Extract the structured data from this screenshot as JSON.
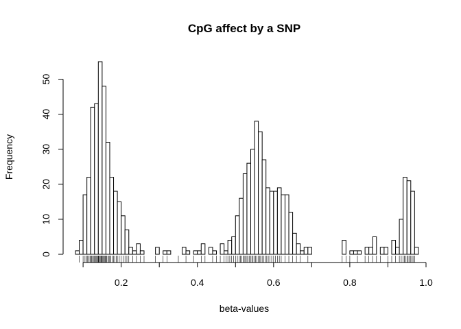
{
  "chart_data": {
    "type": "bar",
    "title": "CpG affect by a SNP",
    "xlabel": "beta-values",
    "ylabel": "Frequency",
    "xlim": [
      0.08,
      1.0
    ],
    "ylim": [
      0,
      55
    ],
    "x_ticks": [
      0.2,
      0.4,
      0.6,
      0.8,
      1.0
    ],
    "x_tick_labels": [
      "0.2",
      "0.4",
      "0.6",
      "0.8",
      "1.0"
    ],
    "y_ticks": [
      0,
      10,
      20,
      30,
      40,
      50
    ],
    "y_tick_labels": [
      "0",
      "10",
      "20",
      "30",
      "40",
      "50"
    ],
    "bin_width": 0.01,
    "bin_start": 0.08,
    "bin_counts": [
      1,
      4,
      17,
      22,
      42,
      43,
      55,
      48,
      32,
      22,
      18,
      15,
      11,
      7,
      2,
      1,
      3,
      1,
      0,
      0,
      0,
      2,
      0,
      1,
      1,
      0,
      0,
      0,
      2,
      1,
      0,
      1,
      1,
      3,
      0,
      2,
      1,
      0,
      3,
      1,
      4,
      5,
      11,
      16,
      23,
      26,
      30,
      38,
      35,
      27,
      19,
      18,
      18,
      19,
      17,
      17,
      12,
      6,
      3,
      1,
      2,
      2,
      0,
      0,
      0,
      0,
      0,
      0,
      0,
      0,
      4,
      0,
      1,
      1,
      1,
      0,
      2,
      2,
      5,
      0,
      2,
      2,
      0,
      4,
      2,
      10,
      22,
      21,
      18,
      2
    ],
    "rug": [
      0.09,
      0.1,
      0.105,
      0.11,
      0.112,
      0.115,
      0.118,
      0.12,
      0.122,
      0.125,
      0.127,
      0.13,
      0.132,
      0.134,
      0.136,
      0.138,
      0.14,
      0.141,
      0.143,
      0.145,
      0.147,
      0.149,
      0.15,
      0.152,
      0.154,
      0.156,
      0.158,
      0.16,
      0.162,
      0.165,
      0.168,
      0.17,
      0.173,
      0.176,
      0.18,
      0.183,
      0.187,
      0.19,
      0.195,
      0.2,
      0.205,
      0.21,
      0.215,
      0.22,
      0.23,
      0.24,
      0.25,
      0.26,
      0.29,
      0.31,
      0.32,
      0.35,
      0.37,
      0.39,
      0.41,
      0.42,
      0.44,
      0.45,
      0.46,
      0.47,
      0.475,
      0.48,
      0.485,
      0.49,
      0.495,
      0.5,
      0.505,
      0.51,
      0.513,
      0.516,
      0.52,
      0.523,
      0.526,
      0.53,
      0.533,
      0.536,
      0.54,
      0.543,
      0.546,
      0.55,
      0.553,
      0.556,
      0.56,
      0.563,
      0.566,
      0.57,
      0.574,
      0.578,
      0.582,
      0.586,
      0.59,
      0.595,
      0.6,
      0.605,
      0.61,
      0.615,
      0.62,
      0.63,
      0.64,
      0.65,
      0.66,
      0.67,
      0.69,
      0.78,
      0.79,
      0.8,
      0.82,
      0.84,
      0.85,
      0.86,
      0.87,
      0.88,
      0.9,
      0.91,
      0.92,
      0.93,
      0.935,
      0.94,
      0.943,
      0.946,
      0.95,
      0.953,
      0.956,
      0.96,
      0.963,
      0.966,
      0.97
    ]
  }
}
